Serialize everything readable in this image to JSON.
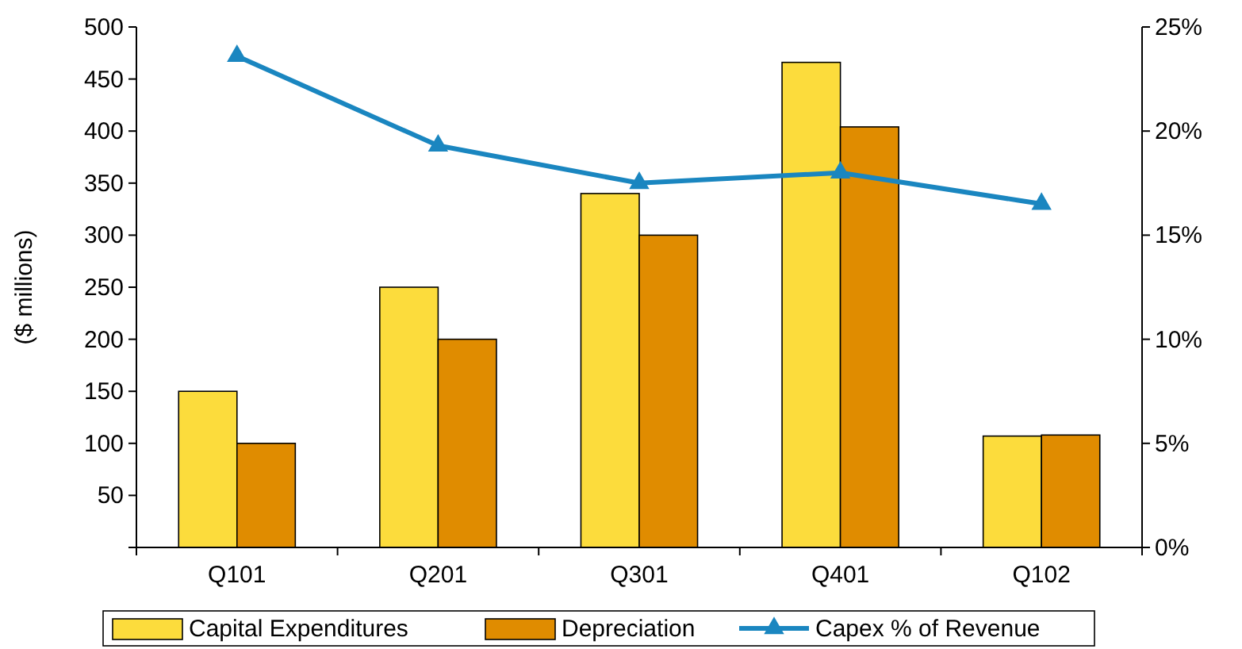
{
  "chart_data": {
    "type": "bar",
    "ylabel": "($ millions)",
    "categories": [
      "Q101",
      "Q201",
      "Q301",
      "Q401",
      "Q102"
    ],
    "series": [
      {
        "name": "Capital Expenditures",
        "color": "#fcdc3c",
        "values": [
          150,
          250,
          340,
          466,
          107
        ]
      },
      {
        "name": "Depreciation",
        "color": "#e08c00",
        "values": [
          100,
          200,
          300,
          404,
          108
        ]
      },
      {
        "name": "Capex % of Revenue",
        "type": "line",
        "axis": "y2",
        "color": "#1a86c0",
        "values": [
          23.6,
          19.3,
          17.5,
          18.0,
          16.5
        ]
      }
    ],
    "ylim": [
      0,
      500
    ],
    "yticks": [
      {
        "value": 0,
        "label": null
      },
      50,
      100,
      150,
      200,
      250,
      300,
      350,
      400,
      450,
      500
    ],
    "y2lim": [
      0,
      25
    ],
    "y2ticks": [
      {
        "value": 0,
        "label": "0%"
      },
      {
        "value": 5,
        "label": "5%"
      },
      {
        "value": 10,
        "label": "10%"
      },
      {
        "value": 15,
        "label": "15%"
      },
      {
        "value": 20,
        "label": "20%"
      },
      {
        "value": 25,
        "label": "25%"
      }
    ],
    "marker": "triangle",
    "legend": "bottom",
    "grid": false
  }
}
